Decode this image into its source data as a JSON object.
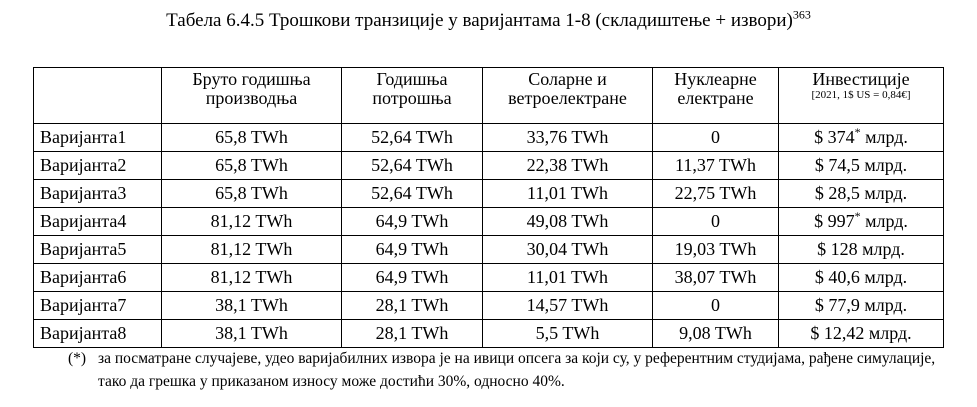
{
  "title": {
    "text": "Табела 6.4.5  Трошкови транзиције у варијантама 1-8 (складиштење + извори)",
    "ref": "363"
  },
  "table": {
    "header": [
      [],
      [
        "Бруто годишња",
        "производња"
      ],
      [
        "Годишња",
        "потрошња"
      ],
      [
        "Соларне и",
        "ветроелектране"
      ],
      [
        "Нуклеарне",
        "електране"
      ],
      [
        "Инвестиције"
      ]
    ],
    "header_note": "[2021, 1$ US = 0,84€]",
    "rows": [
      [
        "Варијанта1",
        "65,8 TWh",
        "52,64 TWh",
        "33,76 TWh",
        "0",
        {
          "amount": "$ 374",
          "note": "*",
          "unit": "млрд."
        }
      ],
      [
        "Варијанта2",
        "65,8 TWh",
        "52,64 TWh",
        "22,38 TWh",
        "11,37 TWh",
        {
          "amount": "$ 74,5",
          "unit": "млрд."
        }
      ],
      [
        "Варијанта3",
        "65,8 TWh",
        "52,64 TWh",
        "11,01 TWh",
        "22,75 TWh",
        {
          "amount": "$ 28,5",
          "unit": "млрд."
        }
      ],
      [
        "Варијанта4",
        "81,12 TWh",
        "64,9 TWh",
        "49,08 TWh",
        "0",
        {
          "amount": "$ 997",
          "note": "*",
          "unit": "млрд."
        }
      ],
      [
        "Варијанта5",
        "81,12 TWh",
        "64,9 TWh",
        "30,04 TWh",
        "19,03 TWh",
        {
          "amount": "$ 128",
          "unit": "млрд."
        }
      ],
      [
        "Варијанта6",
        "81,12 TWh",
        "64,9 TWh",
        "11,01 TWh",
        "38,07 TWh",
        {
          "amount": "$ 40,6",
          "unit": "млрд."
        }
      ],
      [
        "Варијанта7",
        "38,1 TWh",
        "28,1 TWh",
        "14,57 TWh",
        "0",
        {
          "amount": "$ 77,9",
          "unit": "млрд."
        }
      ],
      [
        "Варијанта8",
        "38,1 TWh",
        "28,1 TWh",
        "5,5 TWh",
        "9,08 TWh",
        {
          "amount": "$ 12,42",
          "unit": "млрд."
        }
      ]
    ]
  },
  "footnote": {
    "marker": "(*)",
    "text": "за посматране случајеве, удео варијабилних извора је на ивици опсега за који су, у референтним студијама, рађене симулације, тако да грешка у приказаном износу може достићи 30%, односно 40%."
  }
}
